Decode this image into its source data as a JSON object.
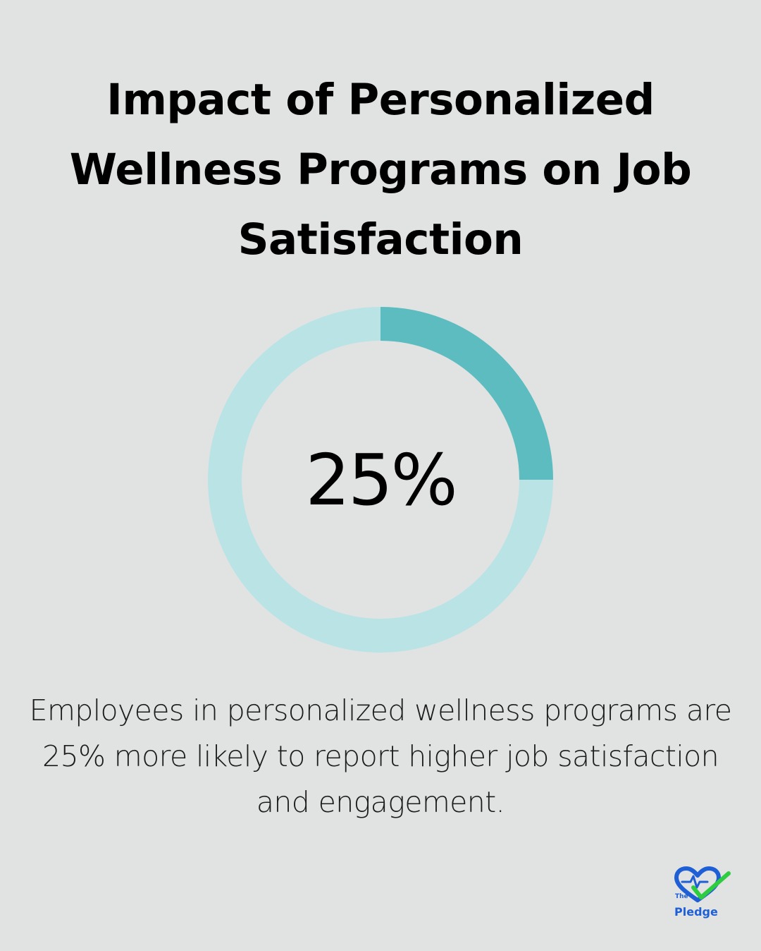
{
  "chart_data": {
    "type": "pie",
    "title": "Impact of Personalized Wellness Programs on Job Satisfaction",
    "center_label": "25%",
    "slices": [
      {
        "value": 25,
        "color": "#5dbcc0"
      },
      {
        "value": 75,
        "color": "#bae3e5"
      }
    ],
    "caption": "Employees in personalized wellness programs are 25% more likely to report higher job satisfaction and engagement."
  },
  "logo": {
    "prefix": "The",
    "name": "Pledge",
    "heart_color": "#1f5fd6",
    "check_color": "#2ecc40"
  }
}
